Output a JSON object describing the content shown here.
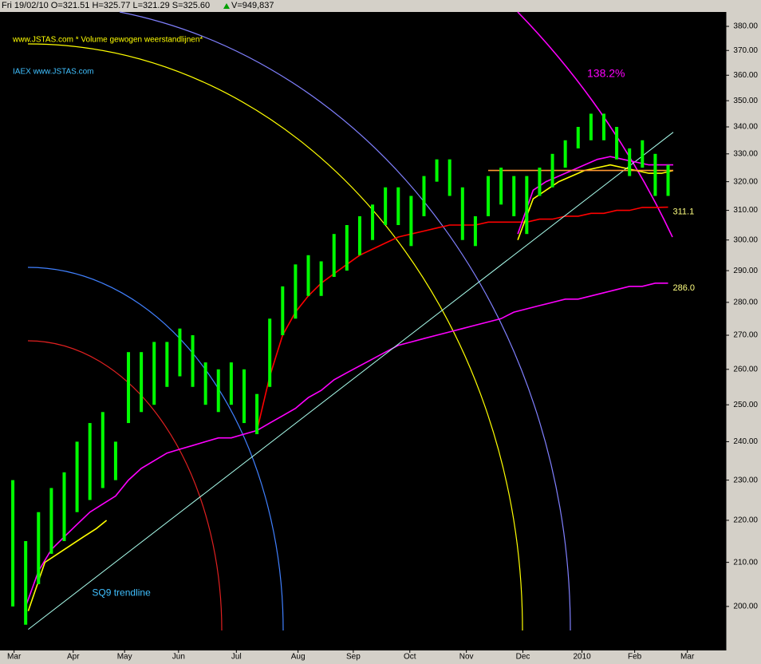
{
  "chart_data": {
    "type": "stock",
    "header": "Fri 19/02/10  O=321.51  H=325.77  L=321.29  S=325.60",
    "volume": "V=949,837",
    "title": "www.JSTAS.com * Volume gewogen weerstandlijnen*",
    "subtitle": "IAEX  www.JSTAS.com",
    "arc_label": "138.2%",
    "log_scale": true,
    "ylim": [
      190.5,
      386.1
    ],
    "yticks": [
      {
        "value": 200,
        "label": "200.00"
      },
      {
        "value": 210,
        "label": "210.00"
      },
      {
        "value": 220,
        "label": "220.00"
      },
      {
        "value": 230,
        "label": "230.00"
      },
      {
        "value": 240,
        "label": "240.00"
      },
      {
        "value": 250,
        "label": "250.00"
      },
      {
        "value": 260,
        "label": "260.00"
      },
      {
        "value": 270,
        "label": "270.00"
      },
      {
        "value": 280,
        "label": "280.00"
      },
      {
        "value": 290,
        "label": "290.00"
      },
      {
        "value": 300,
        "label": "300.00"
      },
      {
        "value": 310,
        "label": "310.00"
      },
      {
        "value": 320,
        "label": "320.00"
      },
      {
        "value": 330,
        "label": "330.00"
      },
      {
        "value": 340,
        "label": "340.00"
      },
      {
        "value": 350,
        "label": "350.00"
      },
      {
        "value": 360,
        "label": "360.00"
      },
      {
        "value": 370,
        "label": "370.00"
      },
      {
        "value": 380,
        "label": "380.00"
      }
    ],
    "xlim": [
      0,
      56
    ],
    "xticks": [
      {
        "value": 0.6,
        "label": "Mar"
      },
      {
        "value": 5.2,
        "label": "Apr"
      },
      {
        "value": 9.2,
        "label": "May"
      },
      {
        "value": 13.4,
        "label": "Jun"
      },
      {
        "value": 17.9,
        "label": "Jul"
      },
      {
        "value": 22.7,
        "label": "Aug"
      },
      {
        "value": 27.0,
        "label": "Sep"
      },
      {
        "value": 31.4,
        "label": "Oct"
      },
      {
        "value": 35.8,
        "label": "Nov"
      },
      {
        "value": 40.2,
        "label": "Dec"
      },
      {
        "value": 44.8,
        "label": "2010"
      },
      {
        "value": 48.9,
        "label": "Feb"
      },
      {
        "value": 53.0,
        "label": "Mar"
      }
    ],
    "x": [
      0.5,
      1.5,
      2.5,
      3.5,
      4.5,
      5.5,
      6.5,
      7.5,
      8.5,
      9.5,
      10.5,
      11.5,
      12.5,
      13.5,
      14.5,
      15.5,
      16.5,
      17.5,
      18.5,
      19.5,
      20.5,
      21.5,
      22.5,
      23.5,
      24.5,
      25.5,
      26.5,
      27.5,
      28.5,
      29.5,
      30.5,
      31.5,
      32.5,
      33.5,
      34.5,
      35.5,
      36.5,
      37.5,
      38.5,
      39.5,
      40.5,
      41.5,
      42.5,
      43.5,
      44.5,
      45.5,
      46.5,
      47.5,
      48.5,
      49.5,
      50.5,
      51.5
    ],
    "ohlc": {
      "color": "#00ff00",
      "high": [
        230,
        215,
        222,
        228,
        232,
        240,
        245,
        248,
        240,
        265,
        265,
        268,
        268,
        272,
        270,
        262,
        260,
        262,
        260,
        253,
        275,
        285,
        292,
        295,
        293,
        302,
        305,
        308,
        312,
        318,
        318,
        315,
        322,
        328,
        328,
        318,
        308,
        322,
        325,
        322,
        322,
        325,
        330,
        335,
        340,
        345,
        345,
        340,
        332,
        335,
        330,
        326
      ],
      "low": [
        200,
        196,
        205,
        212,
        215,
        222,
        225,
        228,
        230,
        245,
        248,
        250,
        255,
        258,
        255,
        250,
        248,
        250,
        245,
        242,
        255,
        270,
        275,
        282,
        282,
        288,
        290,
        295,
        300,
        305,
        305,
        298,
        308,
        320,
        315,
        300,
        298,
        308,
        312,
        308,
        302,
        315,
        318,
        325,
        332,
        335,
        335,
        328,
        322,
        325,
        315,
        315
      ]
    },
    "lines": [
      {
        "color": "#ff0000",
        "end_label": "311.1",
        "values": [
          null,
          null,
          null,
          null,
          null,
          null,
          null,
          null,
          null,
          null,
          null,
          null,
          null,
          null,
          null,
          null,
          null,
          null,
          null,
          243,
          258,
          270,
          277,
          282,
          286,
          289,
          292,
          295,
          297,
          299,
          301,
          302,
          303,
          304,
          305,
          305,
          305,
          306,
          306,
          306,
          306,
          307,
          307,
          308,
          308,
          309,
          309,
          310,
          310,
          311,
          311,
          311.1
        ]
      },
      {
        "color": "#ff00ff",
        "end_label": "286.0",
        "values": [
          null,
          200,
          208,
          213,
          216,
          219,
          222,
          224,
          226,
          230,
          233,
          235,
          237,
          238,
          239,
          240,
          241,
          241,
          242,
          243,
          245,
          247,
          249,
          252,
          254,
          257,
          259,
          261,
          263,
          265,
          267,
          268,
          269,
          270,
          271,
          272,
          273,
          274,
          275,
          277,
          278,
          279,
          280,
          281,
          281,
          282,
          283,
          284,
          285,
          285,
          286,
          286.0
        ]
      },
      {
        "name": "SQ9 trendline",
        "color": "#aaffee",
        "x": [
          1.7,
          51.9
        ],
        "values": [
          195,
          338
        ]
      },
      {
        "color": "#ffff00",
        "x": [
          1.7,
          3,
          4,
          5,
          6,
          7,
          7.8
        ],
        "values": [
          199,
          210,
          212,
          214,
          216,
          218,
          220
        ]
      },
      {
        "color": "#ffff00",
        "x": [
          39.8,
          41,
          42,
          43,
          44,
          45,
          46,
          47,
          48,
          49,
          50,
          51,
          51.9
        ],
        "values": [
          300,
          314,
          317,
          320,
          322,
          324,
          325,
          326,
          325,
          324,
          323,
          323,
          324
        ]
      },
      {
        "color": "#ff00ff",
        "x": [
          39.8,
          41,
          42,
          43,
          44,
          45,
          46,
          47,
          48,
          49,
          50,
          51.9
        ],
        "values": [
          302,
          317,
          320,
          322,
          324,
          326,
          328,
          329,
          328,
          327,
          326,
          326
        ]
      },
      {
        "color": "#ff9933",
        "x": [
          37.5,
          51.9
        ],
        "values": [
          324,
          324
        ]
      }
    ]
  }
}
